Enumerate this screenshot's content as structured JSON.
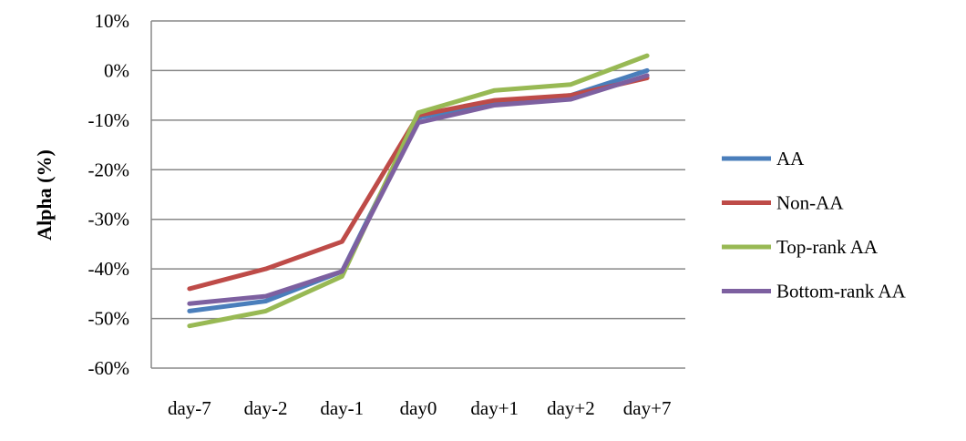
{
  "chart_data": {
    "type": "line",
    "title": "",
    "xlabel": "",
    "ylabel": "Alpha (%)",
    "categories": [
      "day-7",
      "day-2",
      "day-1",
      "day0",
      "day+1",
      "day+2",
      "day+7"
    ],
    "ylim": [
      -60,
      10
    ],
    "yticks": [
      10,
      0,
      -10,
      -20,
      -30,
      -40,
      -50,
      -60
    ],
    "ytick_labels": [
      "10%",
      "0%",
      "-10%",
      "-20%",
      "-30%",
      "-40%",
      "-50%",
      "-60%"
    ],
    "grid": "horizontal",
    "legend_position": "right",
    "series": [
      {
        "name": "AA",
        "color": "#4a7ebb",
        "values": [
          -48.5,
          -46.5,
          -40.5,
          -9.5,
          -6.5,
          -5.0,
          0.0
        ]
      },
      {
        "name": "Non-AA",
        "color": "#be4b48",
        "values": [
          -44.0,
          -40.0,
          -34.5,
          -9.0,
          -6.0,
          -5.0,
          -1.5
        ]
      },
      {
        "name": "Top-rank AA",
        "color": "#98b954",
        "values": [
          -51.5,
          -48.5,
          -41.5,
          -8.5,
          -4.0,
          -2.8,
          3.0
        ]
      },
      {
        "name": "Bottom-rank AA",
        "color": "#7d60a0",
        "values": [
          -47.0,
          -45.5,
          -40.5,
          -10.5,
          -7.0,
          -5.8,
          -1.0
        ]
      }
    ]
  }
}
